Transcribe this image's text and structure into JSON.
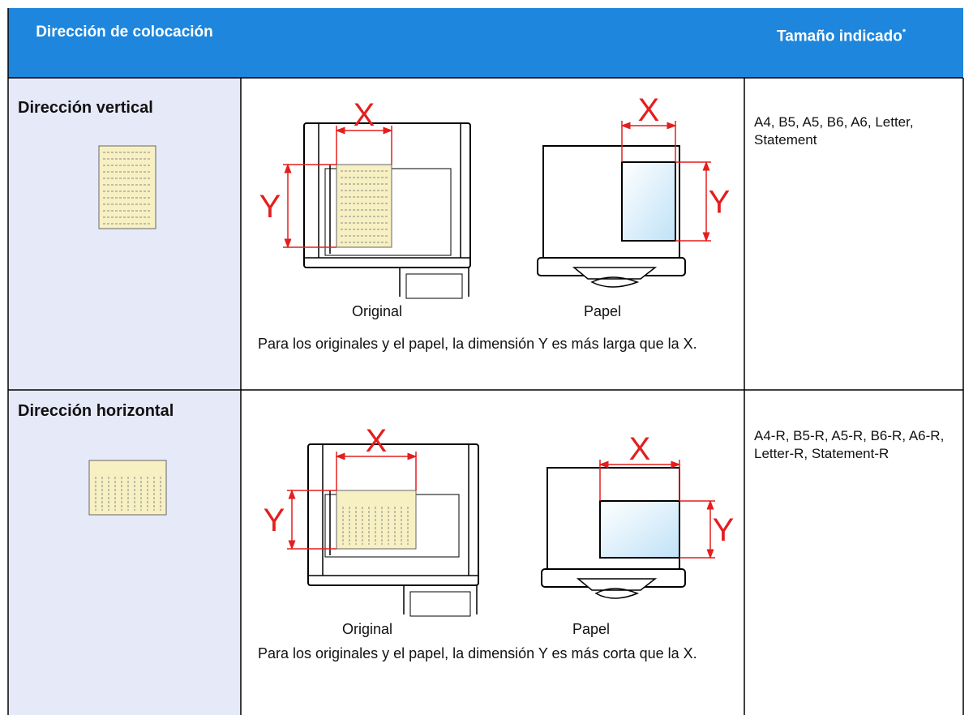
{
  "header": {
    "placement": "Dirección de colocación",
    "size": "Tamaño indicado",
    "size_mark": "*"
  },
  "rows": [
    {
      "orientation": "Dirección vertical",
      "original_x": "X",
      "original_y": "Y",
      "paper_x": "X",
      "paper_y": "Y",
      "original_caption": "Original",
      "paper_caption": "Papel",
      "note": "Para los originales y el papel, la dimensión Y es más larga que la X.",
      "sizes": "A4, B5, A5, B6, A6, Letter, Statement"
    },
    {
      "orientation": "Dirección horizontal",
      "original_x": "X",
      "original_y": "Y",
      "paper_x": "X",
      "paper_y": "Y",
      "original_caption": "Original",
      "paper_caption": "Papel",
      "note": "Para los originales y el papel, la dimensión Y es más corta que la X.",
      "sizes": "A4-R, B5-R, A5-R, B6-R, A6-R, Letter-R, Statement-R"
    }
  ]
}
